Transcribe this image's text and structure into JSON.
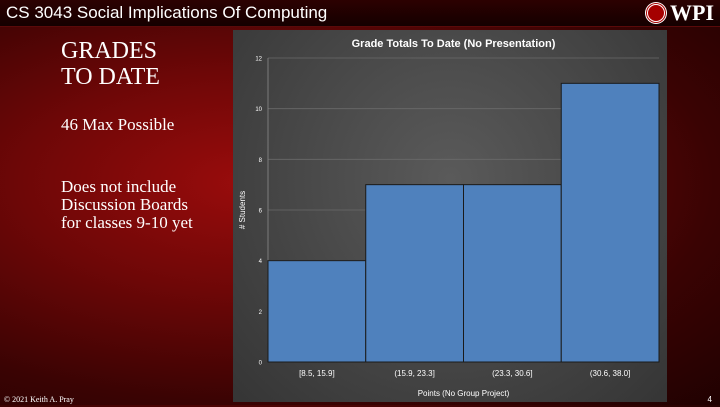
{
  "header": {
    "course_title": "CS 3043 Social Implications Of Computing",
    "logo_text": "WPI"
  },
  "slide": {
    "heading_line1": "GRADES",
    "heading_line2": "TO DATE",
    "max_text": "46 Max Possible",
    "note_line1": "Does not include",
    "note_line2": "Discussion Boards",
    "note_line3": "for classes 9-10 yet"
  },
  "footer": {
    "copyright": "© 2021 Keith A. Pray",
    "page_number": "4"
  },
  "colors": {
    "bar_fill": "#4f81bd",
    "bar_stroke": "#1a1a1a",
    "chart_background": "#444444",
    "slide_accent": "#8b0a0a"
  },
  "chart_data": {
    "type": "bar",
    "title": "Grade Totals To Date (No Presentation)",
    "xlabel": "Points (No Group Project)",
    "ylabel": "# Students",
    "categories": [
      "[8.5, 15.9]",
      "(15.9, 23.3]",
      "(23.3, 30.6]",
      "(30.6, 38.0]"
    ],
    "values": [
      4,
      7,
      7,
      11
    ],
    "ylim": [
      0,
      12
    ],
    "yticks": [
      0,
      2,
      4,
      6,
      8,
      10,
      12
    ],
    "grid": true,
    "legend": "none"
  }
}
